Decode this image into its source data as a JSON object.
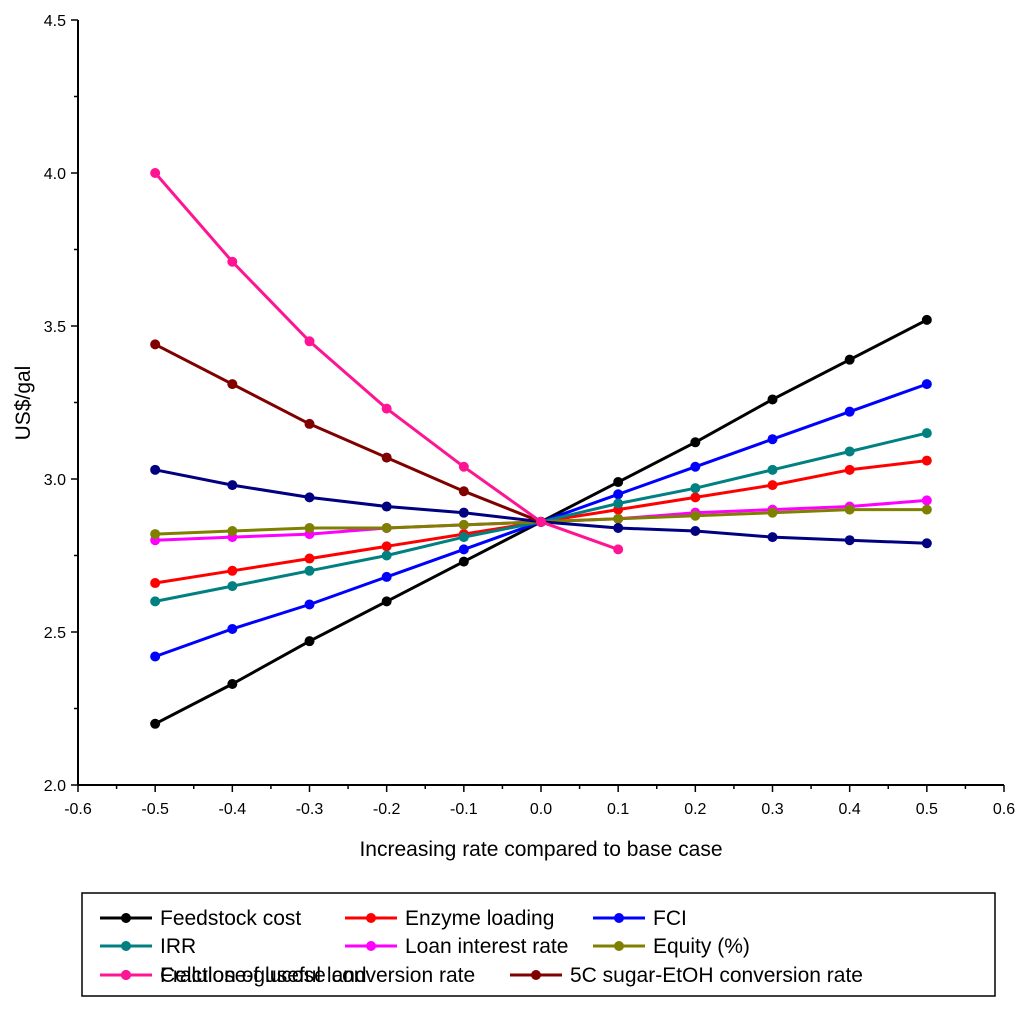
{
  "chart_data": {
    "type": "line",
    "title": "",
    "xlabel": "Increasing rate compared to base case",
    "ylabel": "US$/gal",
    "xlim": [
      -0.6,
      0.6
    ],
    "ylim": [
      2.0,
      4.5
    ],
    "xticks": [
      "-0.6",
      "-0.5",
      "-0.4",
      "-0.3",
      "-0.2",
      "-0.1",
      "0.0",
      "0.1",
      "0.2",
      "0.3",
      "0.4",
      "0.5",
      "0.6"
    ],
    "yticks": [
      "2.0",
      "2.5",
      "3.0",
      "3.5",
      "4.0",
      "4.5"
    ],
    "grid": false,
    "legend_position": "bottom",
    "series": [
      {
        "name": "Feedstock cost",
        "color": "#000000",
        "x": [
          -0.5,
          -0.4,
          -0.3,
          -0.2,
          -0.1,
          0.0,
          0.1,
          0.2,
          0.3,
          0.4,
          0.5
        ],
        "y": [
          2.2,
          2.33,
          2.47,
          2.6,
          2.73,
          2.86,
          2.99,
          3.12,
          3.26,
          3.39,
          3.52
        ]
      },
      {
        "name": "Enzyme loading",
        "color": "#ff0000",
        "x": [
          -0.5,
          -0.4,
          -0.3,
          -0.2,
          -0.1,
          0.0,
          0.1,
          0.2,
          0.3,
          0.4,
          0.5
        ],
        "y": [
          2.66,
          2.7,
          2.74,
          2.78,
          2.82,
          2.86,
          2.9,
          2.94,
          2.98,
          3.03,
          3.06
        ]
      },
      {
        "name": "FCI",
        "color": "#0000ff",
        "x": [
          -0.5,
          -0.4,
          -0.3,
          -0.2,
          -0.1,
          0.0,
          0.1,
          0.2,
          0.3,
          0.4,
          0.5
        ],
        "y": [
          2.42,
          2.51,
          2.59,
          2.68,
          2.77,
          2.86,
          2.95,
          3.04,
          3.13,
          3.22,
          3.31
        ]
      },
      {
        "name": "IRR",
        "color": "#008080",
        "x": [
          -0.5,
          -0.4,
          -0.3,
          -0.2,
          -0.1,
          0.0,
          0.1,
          0.2,
          0.3,
          0.4,
          0.5
        ],
        "y": [
          2.6,
          2.65,
          2.7,
          2.75,
          2.81,
          2.86,
          2.92,
          2.97,
          3.03,
          3.09,
          3.15
        ]
      },
      {
        "name": "Loan interest rate",
        "color": "#ff00ff",
        "x": [
          -0.5,
          -0.4,
          -0.3,
          -0.2,
          -0.1,
          0.0,
          0.1,
          0.2,
          0.3,
          0.4,
          0.5
        ],
        "y": [
          2.8,
          2.81,
          2.82,
          2.84,
          2.85,
          2.86,
          2.87,
          2.89,
          2.9,
          2.91,
          2.93
        ]
      },
      {
        "name": "Equity (%)",
        "color": "#808000",
        "x": [
          -0.5,
          -0.4,
          -0.3,
          -0.2,
          -0.1,
          0.0,
          0.1,
          0.2,
          0.3,
          0.4,
          0.5
        ],
        "y": [
          2.82,
          2.83,
          2.84,
          2.84,
          2.85,
          2.86,
          2.87,
          2.88,
          2.89,
          2.9,
          2.9
        ]
      },
      {
        "name": "Fraction of useful land",
        "color": "#000080",
        "x": [
          -0.5,
          -0.4,
          -0.3,
          -0.2,
          -0.1,
          0.0,
          0.1,
          0.2,
          0.3,
          0.4,
          0.5
        ],
        "y": [
          3.03,
          2.98,
          2.94,
          2.91,
          2.89,
          2.86,
          2.84,
          2.83,
          2.81,
          2.8,
          2.79
        ]
      },
      {
        "name": "5C sugar-EtOH conversion rate",
        "color": "#800000",
        "x": [
          -0.5,
          -0.4,
          -0.3,
          -0.2,
          -0.1,
          0.0
        ],
        "y": [
          3.44,
          3.31,
          3.18,
          3.07,
          2.96,
          2.86
        ]
      },
      {
        "name": "Cellulose-glucose conversion rate",
        "color": "#ff1493",
        "x": [
          -0.5,
          -0.4,
          -0.3,
          -0.2,
          -0.1,
          0.0,
          0.1
        ],
        "y": [
          4.0,
          3.71,
          3.45,
          3.23,
          3.04,
          2.86,
          2.77
        ]
      }
    ]
  }
}
